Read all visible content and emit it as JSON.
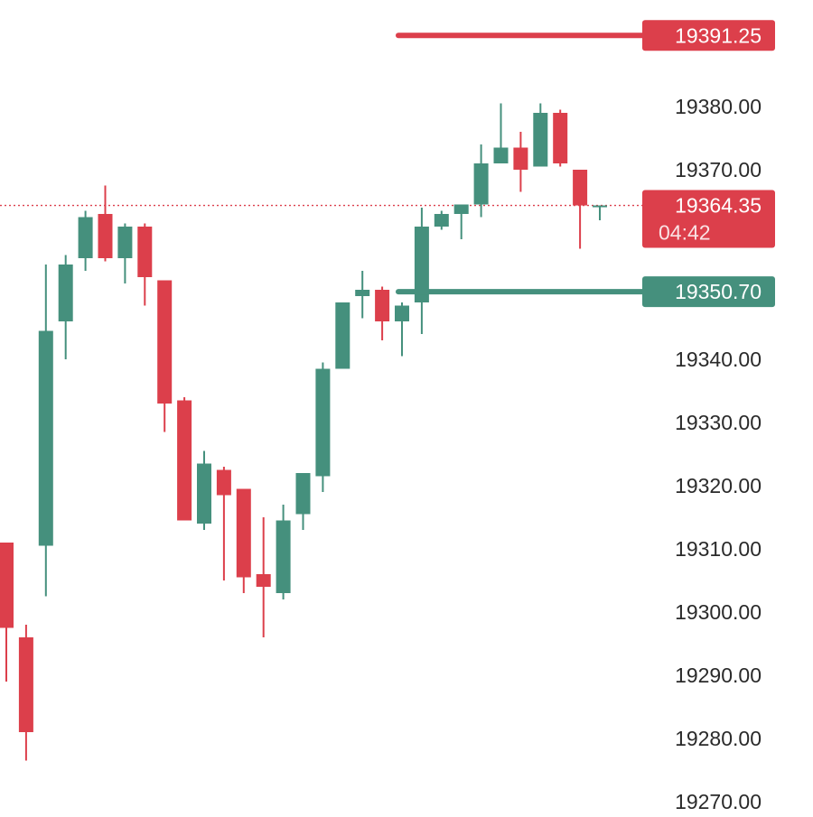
{
  "chart_data": {
    "type": "candlestick",
    "y_axis_side": "right",
    "y_ticks": [
      19380,
      19370,
      19340,
      19330,
      19320,
      19310,
      19300,
      19290,
      19280,
      19270
    ],
    "y_tick_labels": [
      "19380.00",
      "19370.00",
      "19340.00",
      "19330.00",
      "19320.00",
      "19310.00",
      "19300.00",
      "19290.00",
      "19280.00",
      "19270.00"
    ],
    "candles": [
      {
        "open": 19311.0,
        "high": 19311.0,
        "low": 19289.0,
        "close": 19297.5
      },
      {
        "open": 19296.0,
        "high": 19298.0,
        "low": 19276.5,
        "close": 19281.0
      },
      {
        "open": 19310.5,
        "high": 19355.0,
        "low": 19302.5,
        "close": 19344.5
      },
      {
        "open": 19346.0,
        "high": 19356.5,
        "low": 19340.0,
        "close": 19355.0
      },
      {
        "open": 19356.0,
        "high": 19363.5,
        "low": 19354.0,
        "close": 19362.5
      },
      {
        "open": 19363.0,
        "high": 19367.5,
        "low": 19355.5,
        "close": 19356.0
      },
      {
        "open": 19356.0,
        "high": 19361.5,
        "low": 19352.0,
        "close": 19361.0
      },
      {
        "open": 19361.0,
        "high": 19361.5,
        "low": 19348.5,
        "close": 19353.0
      },
      {
        "open": 19352.5,
        "high": 19352.5,
        "low": 19328.5,
        "close": 19333.0
      },
      {
        "open": 19333.5,
        "high": 19334.0,
        "low": 19314.5,
        "close": 19314.5
      },
      {
        "open": 19314.0,
        "high": 19325.5,
        "low": 19313.0,
        "close": 19323.5
      },
      {
        "open": 19322.5,
        "high": 19323.0,
        "low": 19305.0,
        "close": 19318.5
      },
      {
        "open": 19319.5,
        "high": 19319.5,
        "low": 19303.0,
        "close": 19305.5
      },
      {
        "open": 19306.0,
        "high": 19315.0,
        "low": 19296.0,
        "close": 19304.0
      },
      {
        "open": 19303.0,
        "high": 19317.0,
        "low": 19302.0,
        "close": 19314.5
      },
      {
        "open": 19315.5,
        "high": 19322.0,
        "low": 19313.0,
        "close": 19322.0
      },
      {
        "open": 19321.5,
        "high": 19339.5,
        "low": 19319.0,
        "close": 19338.5
      },
      {
        "open": 19338.5,
        "high": 19349.0,
        "low": 19338.5,
        "close": 19349.0
      },
      {
        "open": 19350.0,
        "high": 19354.0,
        "low": 19346.5,
        "close": 19351.0
      },
      {
        "open": 19351.0,
        "high": 19351.5,
        "low": 19343.0,
        "close": 19346.0
      },
      {
        "open": 19346.0,
        "high": 19349.0,
        "low": 19340.5,
        "close": 19348.5
      },
      {
        "open": 19349.0,
        "high": 19364.0,
        "low": 19344.0,
        "close": 19361.0
      },
      {
        "open": 19361.0,
        "high": 19363.5,
        "low": 19360.5,
        "close": 19363.0
      },
      {
        "open": 19363.0,
        "high": 19364.0,
        "low": 19359.0,
        "close": 19364.5
      },
      {
        "open": 19364.5,
        "high": 19374.0,
        "low": 19362.5,
        "close": 19371.0
      },
      {
        "open": 19371.0,
        "high": 19380.5,
        "low": 19371.0,
        "close": 19373.5
      },
      {
        "open": 19373.5,
        "high": 19376.0,
        "low": 19366.5,
        "close": 19370.0
      },
      {
        "open": 19370.5,
        "high": 19380.5,
        "low": 19370.5,
        "close": 19379.0
      },
      {
        "open": 19379.0,
        "high": 19379.5,
        "low": 19370.5,
        "close": 19371.0
      },
      {
        "open": 19370.0,
        "high": 19370.0,
        "low": 19357.5,
        "close": 19364.35
      },
      {
        "open": 19364.35,
        "high": 19364.35,
        "low": 19362.0,
        "close": 19364.35
      }
    ],
    "price_lines": [
      {
        "label": "19391.25",
        "value": 19391.25,
        "kind": "high-marker",
        "color": "#dc3f4b"
      },
      {
        "label": "19350.70",
        "value": 19350.7,
        "kind": "low-marker",
        "color": "#45907d"
      }
    ],
    "current_price": {
      "label": "19364.35",
      "value": 19364.35,
      "countdown": "04:42",
      "color": "#dc3f4b"
    },
    "colors": {
      "up": "#45907d",
      "down": "#dc3f4b",
      "axis_text": "#2a2a2a",
      "badge_text": "#ffffff"
    }
  }
}
